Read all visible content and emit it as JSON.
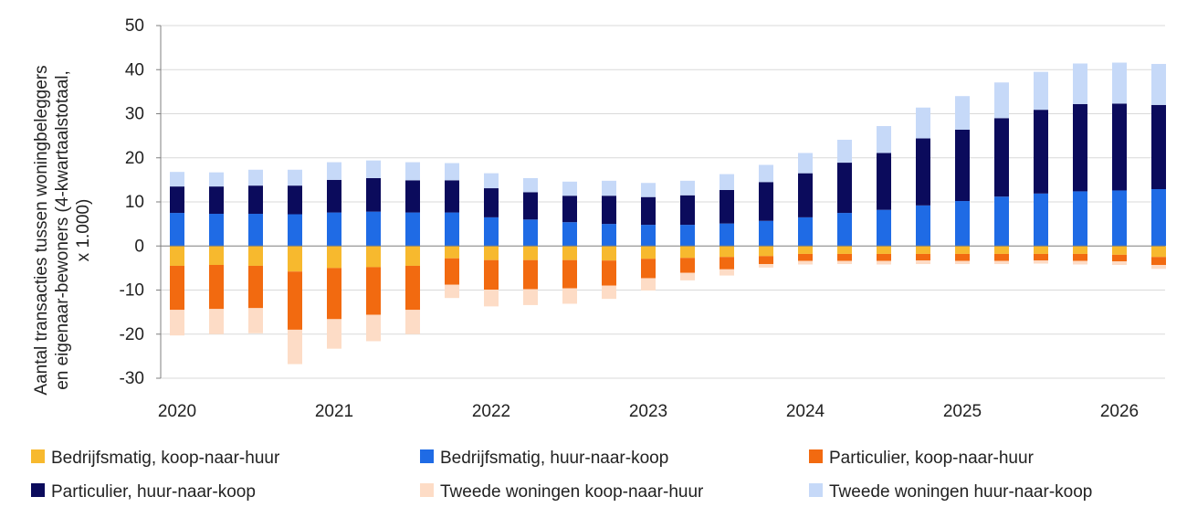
{
  "chart_data": {
    "type": "bar",
    "stacked": true,
    "ylabel": "Aantal transacties tussen woningbeleggers en eigenaar-bewoners (4-kwartaalstotaal, x 1.000)",
    "ylabel_lines": [
      "Aantal transacties tussen woningbeleggers",
      "en eigenaar-bewoners (4-kwartaalstotaal,",
      "x 1.000)"
    ],
    "ylim": [
      -30,
      50
    ],
    "yticks": [
      -30,
      -20,
      -10,
      0,
      10,
      20,
      30,
      40,
      50
    ],
    "xtick_labels": [
      "2020",
      "2021",
      "2022",
      "2023",
      "2024",
      "2025",
      "2026"
    ],
    "grid": true,
    "legend_position": "bottom",
    "categories": [
      "2020Q1",
      "2020Q2",
      "2020Q3",
      "2020Q4",
      "2021Q1",
      "2021Q2",
      "2021Q3",
      "2021Q4",
      "2022Q1",
      "2022Q2",
      "2022Q3",
      "2022Q4",
      "2023Q1",
      "2023Q2",
      "2023Q3",
      "2023Q4",
      "2024Q1",
      "2024Q2",
      "2024Q3",
      "2024Q4",
      "2025Q1",
      "2025Q2",
      "2025Q3",
      "2025Q4",
      "2026Q1",
      "2026Q2"
    ],
    "series": [
      {
        "name": "Bedrijfsmatig, koop-naar-huur",
        "color": "#F7B92E",
        "values": [
          -4.5,
          -4.3,
          -4.5,
          -5.8,
          -5.0,
          -4.8,
          -4.5,
          -2.8,
          -3.2,
          -3.2,
          -3.2,
          -3.3,
          -2.9,
          -2.7,
          -2.5,
          -2.3,
          -1.8,
          -1.8,
          -1.8,
          -1.8,
          -1.8,
          -1.8,
          -1.8,
          -1.8,
          -2.0,
          -2.5
        ]
      },
      {
        "name": "Bedrijfsmatig, huur-naar-koop",
        "color": "#1F6BE5",
        "values": [
          7.5,
          7.3,
          7.3,
          7.2,
          7.6,
          7.8,
          7.6,
          7.6,
          6.5,
          6.0,
          5.4,
          5.0,
          4.8,
          4.8,
          5.1,
          5.7,
          6.5,
          7.5,
          8.2,
          9.2,
          10.2,
          11.2,
          11.9,
          12.4,
          12.6,
          12.9
        ]
      },
      {
        "name": "Particulier, koop-naar-huur",
        "color": "#F26A10",
        "values": [
          -10.0,
          -10.0,
          -9.6,
          -13.2,
          -11.6,
          -10.8,
          -10.0,
          -6.0,
          -6.7,
          -6.6,
          -6.4,
          -5.7,
          -4.4,
          -3.4,
          -2.8,
          -1.8,
          -1.6,
          -1.6,
          -1.6,
          -1.5,
          -1.6,
          -1.6,
          -1.5,
          -1.6,
          -1.5,
          -1.8
        ]
      },
      {
        "name": "Particulier, huur-naar-koop",
        "color": "#0B0B5C",
        "values": [
          6.0,
          6.2,
          6.4,
          6.5,
          7.4,
          7.6,
          7.3,
          7.3,
          6.6,
          6.2,
          6.0,
          6.4,
          6.3,
          6.7,
          7.6,
          8.8,
          10.0,
          11.4,
          12.9,
          15.2,
          16.2,
          17.8,
          19.0,
          19.8,
          19.7,
          19.1
        ]
      },
      {
        "name": "Tweede woningen koop-naar-huur",
        "color": "#FDDCC6",
        "values": [
          -5.8,
          -5.7,
          -5.7,
          -7.8,
          -6.7,
          -6.0,
          -5.5,
          -3.0,
          -3.8,
          -3.6,
          -3.5,
          -3.0,
          -2.8,
          -1.7,
          -1.4,
          -0.8,
          -0.8,
          -0.7,
          -0.8,
          -0.8,
          -0.7,
          -0.7,
          -0.7,
          -0.8,
          -0.8,
          -0.9
        ]
      },
      {
        "name": "Tweede woningen huur-naar-koop",
        "color": "#C6D9F8",
        "values": [
          3.3,
          3.2,
          3.6,
          3.6,
          4.0,
          4.0,
          4.1,
          3.9,
          3.4,
          3.2,
          3.2,
          3.4,
          3.2,
          3.3,
          3.6,
          3.9,
          4.6,
          5.2,
          6.1,
          7.0,
          7.6,
          8.1,
          8.6,
          9.2,
          9.3,
          9.3
        ]
      }
    ]
  }
}
